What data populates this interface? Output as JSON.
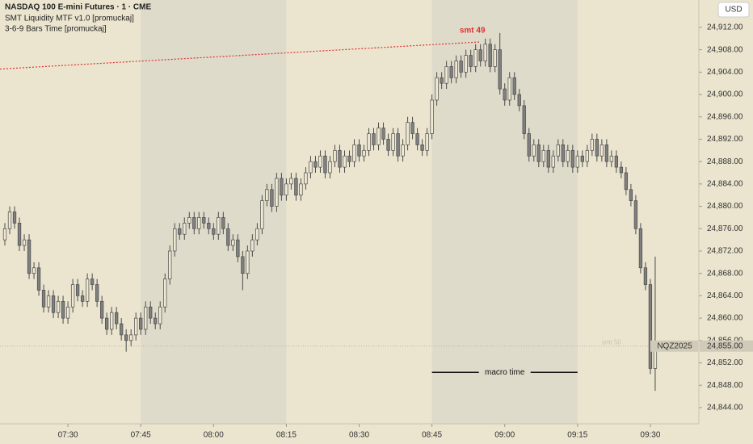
{
  "chart_data": {
    "type": "candlestick",
    "title": "NASDAQ 100 E-mini Futures · 1 · CME",
    "indicators": [
      "SMT Liquidity MTF v1.0 [promuckaj]",
      "3-6-9 Bars Time [promuckaj]"
    ],
    "currency": "USD",
    "symbol": "NQZ2025",
    "last_price": {
      "value": 24855,
      "label": "24,855.00"
    },
    "up_color": "#efe9d3",
    "down_color": "#808080",
    "outline_color": "#4a4a4a",
    "shade_color": "#dfdbcb",
    "shaded": [
      [
        "07:45",
        "08:15"
      ],
      [
        "08:45",
        "09:15"
      ]
    ],
    "macro": {
      "label": "macro time",
      "x": [
        "08:45",
        "09:15"
      ],
      "y": 24850.3
    },
    "smt_line": {
      "label": "smt 49",
      "x": [
        "07:17",
        "08:55"
      ],
      "y": [
        24904.6,
        24909.4
      ],
      "color": "#e03030"
    },
    "smt_faint": {
      "label": "smt 50",
      "x": "09:22",
      "y": 24855.6
    },
    "xlim": [
      "07:16",
      "09:40"
    ],
    "xticks": [
      "07:30",
      "07:45",
      "08:00",
      "08:15",
      "08:30",
      "08:45",
      "09:00",
      "09:15",
      "09:30"
    ],
    "ylim": [
      24841.1,
      24916.9
    ],
    "yticks": [
      {
        "value": 24844,
        "label": "24,844.00"
      },
      {
        "value": 24848,
        "label": "24,848.00"
      },
      {
        "value": 24852,
        "label": "24,852.00"
      },
      {
        "value": 24856,
        "label": "24,856.00"
      },
      {
        "value": 24860,
        "label": "24,860.00"
      },
      {
        "value": 24864,
        "label": "24,864.00"
      },
      {
        "value": 24868,
        "label": "24,868.00"
      },
      {
        "value": 24872,
        "label": "24,872.00"
      },
      {
        "value": 24876,
        "label": "24,876.00"
      },
      {
        "value": 24880,
        "label": "24,880.00"
      },
      {
        "value": 24884,
        "label": "24,884.00"
      },
      {
        "value": 24888,
        "label": "24,888.00"
      },
      {
        "value": 24892,
        "label": "24,892.00"
      },
      {
        "value": 24896,
        "label": "24,896.00"
      },
      {
        "value": 24900,
        "label": "24,900.00"
      },
      {
        "value": 24904,
        "label": "24,904.00"
      },
      {
        "value": 24908,
        "label": "24,908.00"
      },
      {
        "value": 24912,
        "label": "24,912.00"
      }
    ],
    "x": [
      "07:17",
      "07:18",
      "07:19",
      "07:20",
      "07:21",
      "07:22",
      "07:23",
      "07:24",
      "07:25",
      "07:26",
      "07:27",
      "07:28",
      "07:29",
      "07:30",
      "07:31",
      "07:32",
      "07:33",
      "07:34",
      "07:35",
      "07:36",
      "07:37",
      "07:38",
      "07:39",
      "07:40",
      "07:41",
      "07:42",
      "07:43",
      "07:44",
      "07:45",
      "07:46",
      "07:47",
      "07:48",
      "07:49",
      "07:50",
      "07:51",
      "07:52",
      "07:53",
      "07:54",
      "07:55",
      "07:56",
      "07:57",
      "07:58",
      "07:59",
      "08:00",
      "08:01",
      "08:02",
      "08:03",
      "08:04",
      "08:05",
      "08:06",
      "08:07",
      "08:08",
      "08:09",
      "08:10",
      "08:11",
      "08:12",
      "08:13",
      "08:14",
      "08:15",
      "08:16",
      "08:17",
      "08:18",
      "08:19",
      "08:20",
      "08:21",
      "08:22",
      "08:23",
      "08:24",
      "08:25",
      "08:26",
      "08:27",
      "08:28",
      "08:29",
      "08:30",
      "08:31",
      "08:32",
      "08:33",
      "08:34",
      "08:35",
      "08:36",
      "08:37",
      "08:38",
      "08:39",
      "08:40",
      "08:41",
      "08:42",
      "08:43",
      "08:44",
      "08:45",
      "08:46",
      "08:47",
      "08:48",
      "08:49",
      "08:50",
      "08:51",
      "08:52",
      "08:53",
      "08:54",
      "08:55",
      "08:56",
      "08:57",
      "08:58",
      "08:59",
      "09:00",
      "09:01",
      "09:02",
      "09:03",
      "09:04",
      "09:05",
      "09:06",
      "09:07",
      "09:08",
      "09:09",
      "09:10",
      "09:11",
      "09:12",
      "09:13",
      "09:14",
      "09:15",
      "09:16",
      "09:17",
      "09:18",
      "09:19",
      "09:20",
      "09:21",
      "09:22",
      "09:23",
      "09:24",
      "09:25",
      "09:26",
      "09:27",
      "09:28",
      "09:29",
      "09:30",
      "09:31"
    ],
    "open": [
      24874,
      24876,
      24879,
      24877,
      24873,
      24874,
      24868,
      24869,
      24865,
      24862,
      24864,
      24861,
      24863,
      24860,
      24862,
      24866,
      24864,
      24863,
      24867,
      24866,
      24863,
      24860,
      24858,
      24861,
      24859,
      24857,
      24856,
      24857,
      24860,
      24858,
      24862,
      24860,
      24859,
      24862,
      24867,
      24872,
      24876,
      24875,
      24877,
      24878,
      24876,
      24878,
      24877,
      24876,
      24875,
      24878,
      24876,
      24873,
      24874,
      24871,
      24868,
      24872,
      24874,
      24876,
      24881,
      24883,
      24880,
      24885,
      24882,
      24884,
      24885,
      24882,
      24884,
      24886,
      24888,
      24887,
      24889,
      24886,
      24888,
      24890,
      24887,
      24889,
      24888,
      24891,
      24889,
      24890,
      24893,
      24891,
      24894,
      24892,
      24890,
      24893,
      24889,
      24891,
      24895,
      24893,
      24891,
      24890,
      24893,
      24899,
      24903,
      24902,
      24905,
      24903,
      24906,
      24904,
      24907,
      24905,
      24908,
      24906,
      24909,
      24905,
      24908,
      24901,
      24899,
      24903,
      24900,
      24898,
      24893,
      24889,
      24891,
      24888,
      24890,
      24887,
      24889,
      24891,
      24888,
      24890,
      24887,
      24889,
      24888,
      24890,
      24892,
      24889,
      24891,
      24888,
      24889,
      24887,
      24886,
      24883,
      24881,
      24876,
      24869,
      24866,
      24851
    ],
    "high": [
      24877,
      24880,
      24880,
      24878,
      24875,
      24875,
      24870,
      24870,
      24866,
      24865,
      24865,
      24864,
      24864,
      24863,
      24867,
      24867,
      24865,
      24868,
      24868,
      24867,
      24864,
      24861,
      24862,
      24862,
      24860,
      24858,
      24858,
      24861,
      24861,
      24863,
      24863,
      24861,
      24863,
      24868,
      24873,
      24877,
      24877,
      24878,
      24879,
      24879,
      24879,
      24879,
      24878,
      24877,
      24879,
      24879,
      24877,
      24875,
      24875,
      24872,
      24873,
      24875,
      24877,
      24882,
      24884,
      24884,
      24886,
      24886,
      24885,
      24886,
      24886,
      24885,
      24887,
      24889,
      24889,
      24890,
      24890,
      24889,
      24891,
      24891,
      24890,
      24890,
      24892,
      24892,
      24891,
      24894,
      24894,
      24895,
      24895,
      24893,
      24894,
      24894,
      24892,
      24896,
      24896,
      24894,
      24892,
      24894,
      24900,
      24904,
      24904,
      24906,
      24906,
      24907,
      24907,
      24908,
      24908,
      24909,
      24909,
      24910,
      24910,
      24909,
      24911,
      24902,
      24904,
      24904,
      24901,
      24899,
      24894,
      24892,
      24892,
      24891,
      24891,
      24890,
      24892,
      24892,
      24891,
      24891,
      24890,
      24890,
      24891,
      24893,
      24893,
      24892,
      24892,
      24890,
      24890,
      24888,
      24887,
      24884,
      24882,
      24877,
      24870,
      24867,
      24871
    ],
    "low": [
      24873,
      24875,
      24876,
      24872,
      24872,
      24867,
      24867,
      24864,
      24861,
      24861,
      24860,
      24860,
      24859,
      24859,
      24861,
      24863,
      24862,
      24862,
      24865,
      24862,
      24859,
      24857,
      24857,
      24858,
      24856,
      24854,
      24855,
      24856,
      24857,
      24857,
      24859,
      24858,
      24858,
      24861,
      24866,
      24871,
      24874,
      24874,
      24876,
      24875,
      24875,
      24876,
      24875,
      24874,
      24874,
      24875,
      24872,
      24872,
      24870,
      24865,
      24867,
      24871,
      24873,
      24875,
      24880,
      24879,
      24879,
      24881,
      24881,
      24883,
      24881,
      24881,
      24883,
      24885,
      24886,
      24886,
      24885,
      24885,
      24887,
      24886,
      24886,
      24887,
      24887,
      24888,
      24888,
      24889,
      24890,
      24890,
      24891,
      24889,
      24889,
      24888,
      24888,
      24890,
      24892,
      24890,
      24889,
      24889,
      24892,
      24898,
      24901,
      24901,
      24902,
      24902,
      24903,
      24903,
      24904,
      24904,
      24905,
      24905,
      24904,
      24904,
      24900,
      24898,
      24898,
      24899,
      24897,
      24892,
      24888,
      24888,
      24887,
      24887,
      24886,
      24886,
      24888,
      24887,
      24887,
      24886,
      24886,
      24887,
      24887,
      24889,
      24888,
      24888,
      24887,
      24887,
      24886,
      24885,
      24882,
      24880,
      24875,
      24868,
      24865,
      24850,
      24847
    ],
    "close": [
      24876,
      24879,
      24877,
      24873,
      24874,
      24868,
      24869,
      24865,
      24862,
      24864,
      24861,
      24863,
      24860,
      24862,
      24866,
      24864,
      24863,
      24867,
      24866,
      24863,
      24860,
      24858,
      24861,
      24859,
      24857,
      24856,
      24857,
      24860,
      24858,
      24862,
      24860,
      24859,
      24862,
      24867,
      24872,
      24876,
      24875,
      24877,
      24878,
      24876,
      24878,
      24877,
      24876,
      24875,
      24878,
      24876,
      24873,
      24874,
      24871,
      24868,
      24872,
      24874,
      24876,
      24881,
      24883,
      24880,
      24885,
      24882,
      24884,
      24885,
      24882,
      24884,
      24886,
      24888,
      24887,
      24889,
      24886,
      24888,
      24890,
      24887,
      24889,
      24888,
      24891,
      24889,
      24890,
      24893,
      24891,
      24894,
      24892,
      24890,
      24893,
      24889,
      24891,
      24895,
      24893,
      24891,
      24890,
      24893,
      24899,
      24903,
      24902,
      24905,
      24903,
      24906,
      24904,
      24907,
      24905,
      24908,
      24906,
      24909,
      24905,
      24908,
      24901,
      24899,
      24903,
      24900,
      24898,
      24893,
      24889,
      24891,
      24888,
      24890,
      24887,
      24889,
      24891,
      24888,
      24890,
      24887,
      24889,
      24888,
      24890,
      24892,
      24889,
      24891,
      24888,
      24889,
      24887,
      24886,
      24883,
      24881,
      24876,
      24869,
      24866,
      24851,
      24855
    ]
  }
}
